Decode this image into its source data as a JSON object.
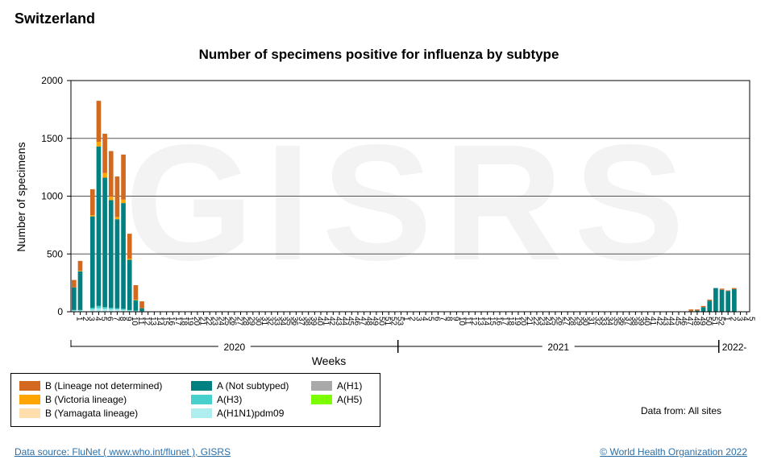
{
  "country": "Switzerland",
  "chart_data": {
    "type": "bar",
    "stacked": true,
    "title": "Number of specimens positive for influenza by subtype",
    "xlabel": "Weeks",
    "ylabel": "Number of specimens",
    "ylim": [
      0,
      2000
    ],
    "yticks": [
      0,
      500,
      1000,
      1500,
      2000
    ],
    "grid": true,
    "watermark": "GISRS",
    "x_ticks": [
      "1",
      "2",
      "3",
      "4",
      "5",
      "6",
      "7",
      "8",
      "9",
      "10",
      "11",
      "12",
      "13",
      "14",
      "15",
      "16",
      "17",
      "18",
      "19",
      "20",
      "21",
      "22",
      "23",
      "24",
      "25",
      "26",
      "27",
      "28",
      "29",
      "30",
      "31",
      "32",
      "33",
      "34",
      "35",
      "36",
      "37",
      "38",
      "39",
      "40",
      "41",
      "42",
      "43",
      "44",
      "45",
      "46",
      "47",
      "48",
      "49",
      "50",
      "51",
      "52",
      "53",
      "1",
      "2",
      "3",
      "4",
      "5",
      "6",
      "7",
      "8",
      "9",
      "10",
      "11",
      "12",
      "13",
      "14",
      "15",
      "16",
      "17",
      "18",
      "19",
      "20",
      "21",
      "22",
      "23",
      "24",
      "25",
      "26",
      "27",
      "28",
      "29",
      "30",
      "31",
      "32",
      "33",
      "34",
      "35",
      "36",
      "37",
      "38",
      "39",
      "40",
      "41",
      "42",
      "43",
      "44",
      "45",
      "46",
      "47",
      "48",
      "49",
      "50",
      "51",
      "52",
      "1",
      "2",
      "3",
      "4",
      "5"
    ],
    "years": [
      {
        "label": "2020",
        "start_index": 0,
        "end_index": 52
      },
      {
        "label": "2021",
        "start_index": 53,
        "end_index": 104
      },
      {
        "label": "2022-",
        "start_index": 105,
        "end_index": 109
      }
    ],
    "series": [
      {
        "name": "B (Lineage not determined)",
        "color": "#d2691e"
      },
      {
        "name": "B (Victoria lineage)",
        "color": "#ffa500"
      },
      {
        "name": "B (Yamagata lineage)",
        "color": "#ffdead"
      },
      {
        "name": "A (Not subtyped)",
        "color": "#008080"
      },
      {
        "name": "A(H3)",
        "color": "#48d1cc"
      },
      {
        "name": "A(H1N1)pdm09",
        "color": "#afeeee"
      },
      {
        "name": "A(H1)",
        "color": "#a9a9a9"
      },
      {
        "name": "A(H5)",
        "color": "#7cfc00"
      }
    ],
    "stack_order": [
      "A(H1N1)pdm09",
      "A(H3)",
      "A (Not subtyped)",
      "B (Yamagata lineage)",
      "B (Victoria lineage)",
      "B (Lineage not determined)"
    ],
    "points": [
      {
        "index": 0,
        "A(H1N1)pdm09": 10,
        "A(H3)": 5,
        "A (Not subtyped)": 195,
        "B (Victoria lineage)": 0,
        "B (Lineage not determined)": 65
      },
      {
        "index": 1,
        "A(H1N1)pdm09": 10,
        "A(H3)": 5,
        "A (Not subtyped)": 335,
        "B (Victoria lineage)": 5,
        "B (Lineage not determined)": 85
      },
      {
        "index": 3,
        "A(H1N1)pdm09": 20,
        "A(H3)": 15,
        "A (Not subtyped)": 790,
        "B (Victoria lineage)": 10,
        "B (Lineage not determined)": 225
      },
      {
        "index": 4,
        "A(H1N1)pdm09": 30,
        "A(H3)": 20,
        "A (Not subtyped)": 1380,
        "B (Victoria lineage)": 40,
        "B (Lineage not determined)": 355
      },
      {
        "index": 5,
        "A(H1N1)pdm09": 25,
        "A(H3)": 15,
        "A (Not subtyped)": 1120,
        "B (Victoria lineage)": 40,
        "B (Lineage not determined)": 340
      },
      {
        "index": 6,
        "A(H1N1)pdm09": 20,
        "A(H3)": 15,
        "A (Not subtyped)": 930,
        "B (Victoria lineage)": 30,
        "B (Lineage not determined)": 395
      },
      {
        "index": 7,
        "A(H1N1)pdm09": 20,
        "A(H3)": 10,
        "A (Not subtyped)": 770,
        "B (Victoria lineage)": 20,
        "B (Lineage not determined)": 350
      },
      {
        "index": 8,
        "A(H1N1)pdm09": 15,
        "A(H3)": 10,
        "A (Not subtyped)": 915,
        "B (Victoria lineage)": 30,
        "B (Lineage not determined)": 390
      },
      {
        "index": 9,
        "A(H1N1)pdm09": 10,
        "A(H3)": 5,
        "A (Not subtyped)": 435,
        "B (Victoria lineage)": 10,
        "B (Lineage not determined)": 215
      },
      {
        "index": 10,
        "A(H1N1)pdm09": 5,
        "A(H3)": 5,
        "A (Not subtyped)": 90,
        "B (Victoria lineage)": 5,
        "B (Lineage not determined)": 125
      },
      {
        "index": 11,
        "A(H1N1)pdm09": 2,
        "A(H3)": 3,
        "A (Not subtyped)": 25,
        "B (Victoria lineage)": 0,
        "B (Lineage not determined)": 60
      },
      {
        "index": 100,
        "A (Not subtyped)": 5,
        "B (Lineage not determined)": 15
      },
      {
        "index": 101,
        "A (Not subtyped)": 10,
        "B (Lineage not determined)": 10
      },
      {
        "index": 102,
        "A (Not subtyped)": 40,
        "B (Lineage not determined)": 10
      },
      {
        "index": 103,
        "A (Not subtyped)": 95,
        "B (Lineage not determined)": 10
      },
      {
        "index": 104,
        "A (Not subtyped)": 205
      },
      {
        "index": 105,
        "A (Not subtyped)": 190,
        "B (Lineage not determined)": 10
      },
      {
        "index": 106,
        "A (Not subtyped)": 180,
        "B (Lineage not determined)": 5
      },
      {
        "index": 107,
        "A (Not subtyped)": 195,
        "B (Lineage not determined)": 10
      }
    ]
  },
  "legend": {
    "items": [
      {
        "label": "B (Lineage not determined)",
        "color": "#d2691e"
      },
      {
        "label": "B (Victoria lineage)",
        "color": "#ffa500"
      },
      {
        "label": "B (Yamagata lineage)",
        "color": "#ffdead"
      },
      {
        "label": "A (Not subtyped)",
        "color": "#008080"
      },
      {
        "label": "A(H3)",
        "color": "#48d1cc"
      },
      {
        "label": "A(H1N1)pdm09",
        "color": "#afeeee"
      },
      {
        "label": "A(H1)",
        "color": "#a9a9a9"
      },
      {
        "label": "A(H5)",
        "color": "#7cfc00"
      }
    ]
  },
  "data_from": "Data from: All sites",
  "footer": {
    "source": "Data source: FluNet ( www.who.int/flunet ), GISRS",
    "copyright": "© World Health Organization 2022"
  }
}
